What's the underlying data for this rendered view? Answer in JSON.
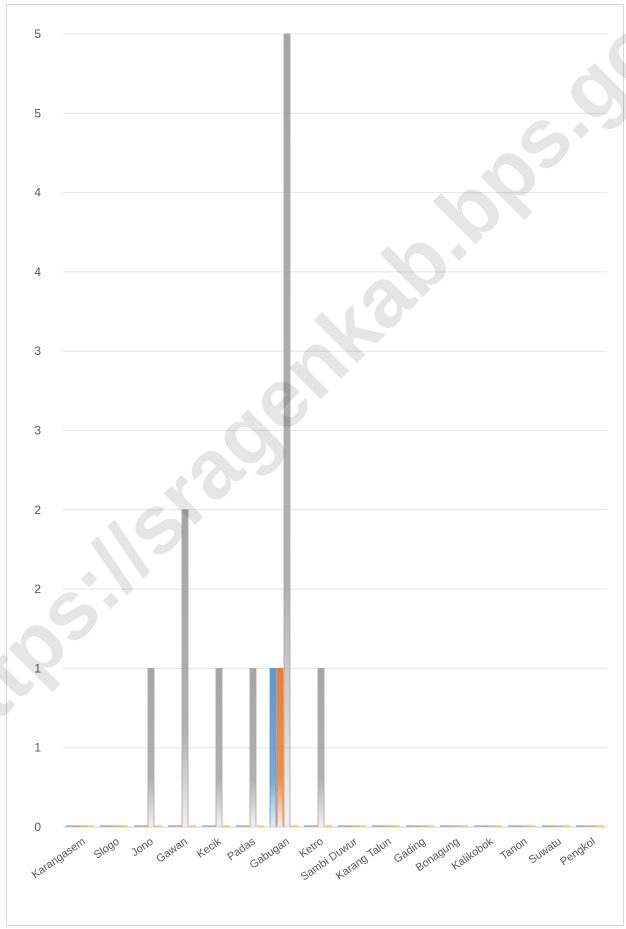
{
  "chart_data": {
    "type": "bar",
    "title": "",
    "xlabel": "",
    "ylabel": "",
    "ylim": [
      0,
      5
    ],
    "y_tick_values": [
      0,
      0.5,
      1,
      1.5,
      2,
      2.5,
      3,
      3.5,
      4,
      4.5,
      5
    ],
    "y_tick_labels": [
      "0",
      "1",
      "1",
      "2",
      "2",
      "3",
      "3",
      "4",
      "4",
      "5",
      "5"
    ],
    "grid": true,
    "legend": "none",
    "categories": [
      "Karangasem",
      "Slogo",
      "Jono",
      "Gawan",
      "Kecik",
      "Padas",
      "Gabugan",
      "Ketro",
      "Sambi Duwur",
      "Karang Talun",
      "Gading",
      "Bonagung",
      "Kalikobok",
      "Tanon",
      "Suwatu",
      "Pengkol"
    ],
    "series": [
      {
        "color": "#5b9bd5",
        "values": [
          0,
          0,
          0,
          0,
          0,
          0,
          1,
          0,
          0,
          0,
          0,
          0,
          0,
          0,
          0,
          0
        ]
      },
      {
        "color": "#ed7d31",
        "values": [
          0,
          0,
          0,
          0,
          0,
          0,
          1,
          0,
          0,
          0,
          0,
          0,
          0,
          0,
          0,
          0
        ]
      },
      {
        "color": "#a5a5a5",
        "values": [
          0,
          0,
          1,
          2,
          1,
          1,
          5,
          1,
          0,
          0,
          0,
          0,
          0,
          0,
          0,
          0
        ]
      },
      {
        "color": "#ffc000",
        "values": [
          0,
          0,
          0,
          0,
          0,
          0,
          0,
          0,
          0,
          0,
          0,
          0,
          0,
          0,
          0,
          0
        ]
      }
    ]
  },
  "watermark": {
    "text": "https://sragenkab.bps.go.id"
  }
}
